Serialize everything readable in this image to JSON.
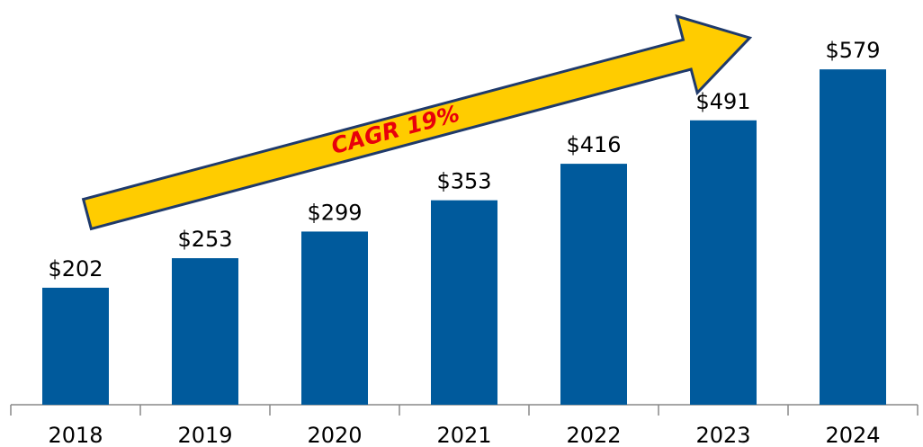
{
  "chart_data": {
    "type": "bar",
    "categories": [
      "2018",
      "2019",
      "2020",
      "2021",
      "2022",
      "2023",
      "2024"
    ],
    "values": [
      202,
      253,
      299,
      353,
      416,
      491,
      579
    ],
    "value_labels": [
      "$202",
      "$253",
      "$299",
      "$353",
      "$416",
      "$491",
      "$579"
    ],
    "color": "#005a9c",
    "annotation": "CAGR 19%"
  }
}
